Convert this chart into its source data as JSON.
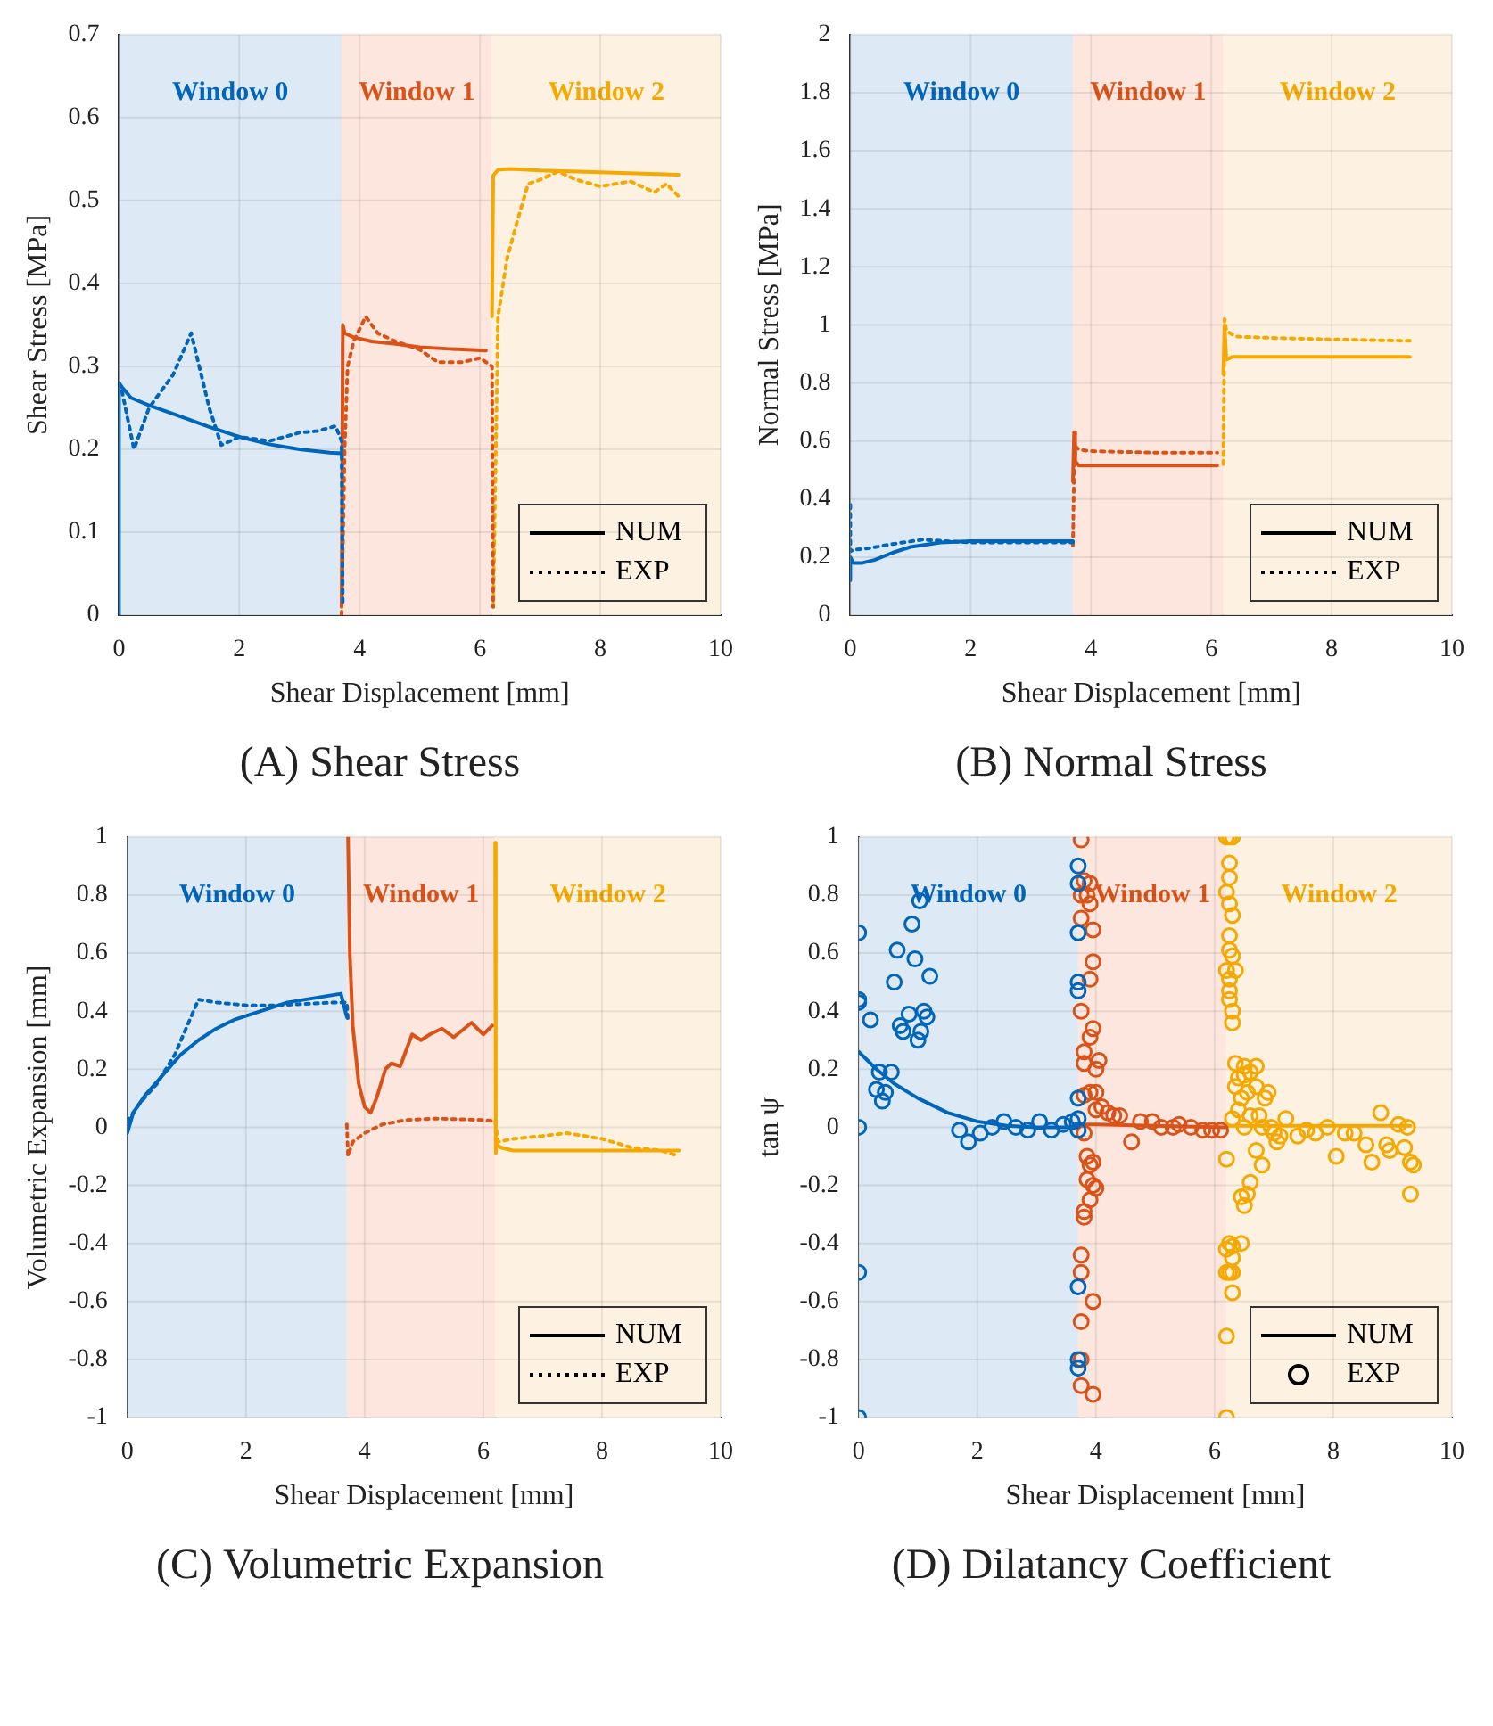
{
  "chart_data": [
    {
      "type": "line",
      "title": "(A) Shear Stress",
      "xlabel": "Shear Displacement [mm]",
      "ylabel": "Shear Stress [MPa]",
      "xlim": [
        0,
        10
      ],
      "xticks": [
        0,
        2,
        4,
        6,
        8,
        10
      ],
      "ylim": [
        0,
        0.7
      ],
      "yticks": [
        0,
        0.1,
        0.2,
        0.3,
        0.4,
        0.5,
        0.6,
        0.7
      ],
      "grid": true,
      "legend": "bottom right",
      "bands": [
        {
          "axis": "x",
          "from": 0,
          "to": 3.7,
          "label": "Window 0",
          "color": "#dde9f4"
        },
        {
          "axis": "x",
          "from": 3.7,
          "to": 6.2,
          "label": "Window 1",
          "color": "#fde6de"
        },
        {
          "axis": "x",
          "from": 6.2,
          "to": 10,
          "label": "Window 2",
          "color": "#fdf2e2"
        }
      ],
      "series": [
        {
          "name": "NUM",
          "color": "#0066bb",
          "line_style": "solid",
          "x": [
            0,
            0,
            0.05,
            0.2,
            0.5,
            1,
            1.5,
            2,
            2.5,
            3,
            3.5,
            3.7
          ],
          "values": [
            0,
            0.28,
            0.275,
            0.262,
            0.253,
            0.24,
            0.227,
            0.215,
            0.206,
            0.2,
            0.196,
            0.195
          ]
        },
        {
          "name": "EXP",
          "color": "#0066bb",
          "line_style": "dotted",
          "x": [
            0,
            0.05,
            0.25,
            0.5,
            0.7,
            0.9,
            1.2,
            1.5,
            1.7,
            2,
            2.5,
            3,
            3.3,
            3.6,
            3.7,
            3.72
          ],
          "values": [
            0.28,
            0.27,
            0.2,
            0.25,
            0.27,
            0.29,
            0.34,
            0.25,
            0.205,
            0.215,
            0.21,
            0.22,
            0.222,
            0.228,
            0.21,
            0.01
          ]
        },
        {
          "color": "#d95319",
          "line_style": "solid",
          "x": [
            3.7,
            3.72,
            3.75,
            3.9,
            4.2,
            4.6,
            5,
            5.5,
            6.1
          ],
          "values": [
            0.01,
            0.35,
            0.34,
            0.335,
            0.33,
            0.327,
            0.323,
            0.321,
            0.319
          ]
        },
        {
          "color": "#d95319",
          "line_style": "dotted",
          "x": [
            3.7,
            3.75,
            3.8,
            3.9,
            4.1,
            4.3,
            4.6,
            5,
            5.3,
            5.7,
            6,
            6.1,
            6.2,
            6.22
          ],
          "values": [
            0,
            0.2,
            0.3,
            0.33,
            0.36,
            0.34,
            0.33,
            0.32,
            0.305,
            0.305,
            0.31,
            0.305,
            0.3,
            0.01
          ]
        },
        {
          "color": "#f5a800",
          "line_style": "solid",
          "x": [
            6.2,
            6.22,
            6.3,
            6.5,
            7,
            8,
            9.3
          ],
          "values": [
            0.36,
            0.53,
            0.537,
            0.538,
            0.536,
            0.534,
            0.531
          ]
        },
        {
          "color": "#f5a800",
          "line_style": "dotted",
          "x": [
            6.22,
            6.3,
            6.45,
            6.6,
            6.8,
            7,
            7.3,
            7.6,
            8,
            8.5,
            8.9,
            9.1,
            9.3
          ],
          "values": [
            0.01,
            0.36,
            0.43,
            0.47,
            0.52,
            0.525,
            0.535,
            0.525,
            0.517,
            0.523,
            0.51,
            0.52,
            0.505
          ]
        }
      ]
    },
    {
      "type": "line",
      "title": "(B) Normal Stress",
      "xlabel": "Shear Displacement [mm]",
      "ylabel": "Normal Stress [MPa]",
      "xlim": [
        0,
        10
      ],
      "xticks": [
        0,
        2,
        4,
        6,
        8,
        10
      ],
      "ylim": [
        0,
        2
      ],
      "yticks": [
        0,
        0.2,
        0.4,
        0.6,
        0.8,
        1,
        1.2,
        1.4,
        1.6,
        1.8,
        2
      ],
      "grid": true,
      "legend": "bottom right",
      "bands": [
        {
          "axis": "x",
          "from": 0,
          "to": 3.7,
          "label": "Window 0",
          "color": "#dde9f4"
        },
        {
          "axis": "x",
          "from": 3.7,
          "to": 6.2,
          "label": "Window 1",
          "color": "#fde6de"
        },
        {
          "axis": "x",
          "from": 6.2,
          "to": 10,
          "label": "Window 2",
          "color": "#fdf2e2"
        }
      ],
      "series": [
        {
          "name": "NUM",
          "color": "#0066bb",
          "line_style": "solid",
          "x": [
            0,
            0,
            0.05,
            0.2,
            0.4,
            0.7,
            1,
            1.5,
            2,
            3,
            3.7
          ],
          "values": [
            0.12,
            0.2,
            0.18,
            0.18,
            0.19,
            0.215,
            0.235,
            0.25,
            0.255,
            0.255,
            0.255
          ]
        },
        {
          "name": "EXP",
          "color": "#0066bb",
          "line_style": "dotted",
          "x": [
            0,
            0,
            0.05,
            0.3,
            0.7,
            1.2,
            1.6,
            2,
            3,
            3.7
          ],
          "values": [
            0.38,
            0.22,
            0.225,
            0.23,
            0.245,
            0.26,
            0.255,
            0.25,
            0.25,
            0.25
          ]
        },
        {
          "color": "#d95319",
          "line_style": "solid",
          "x": [
            3.7,
            3.72,
            3.74,
            3.8,
            4,
            5,
            6.1
          ],
          "values": [
            0.46,
            0.63,
            0.53,
            0.515,
            0.515,
            0.515,
            0.515
          ]
        },
        {
          "color": "#d95319",
          "line_style": "dotted",
          "x": [
            3.7,
            3.72,
            3.75,
            3.8,
            4,
            5,
            6.1
          ],
          "values": [
            0.24,
            0.5,
            0.58,
            0.57,
            0.565,
            0.56,
            0.56
          ]
        },
        {
          "color": "#f5a800",
          "line_style": "solid",
          "x": [
            6.2,
            6.22,
            6.25,
            6.35,
            7,
            8,
            9.3
          ],
          "values": [
            0.83,
            1,
            0.88,
            0.89,
            0.89,
            0.89,
            0.89
          ]
        },
        {
          "color": "#f5a800",
          "line_style": "dotted",
          "x": [
            6.2,
            6.22,
            6.25,
            6.4,
            7,
            8,
            9.3
          ],
          "values": [
            0.52,
            1.02,
            0.98,
            0.96,
            0.955,
            0.95,
            0.945
          ]
        }
      ]
    },
    {
      "type": "line",
      "title": "(C) Volumetric Expansion",
      "xlabel": "Shear Displacement [mm]",
      "ylabel": "Volumetric Expansion [mm]",
      "xlim": [
        0,
        10
      ],
      "xticks": [
        0,
        2,
        4,
        6,
        8,
        10
      ],
      "ylim": [
        -1,
        1
      ],
      "yticks": [
        -1,
        -0.8,
        -0.6,
        -0.4,
        -0.2,
        0,
        0.2,
        0.4,
        0.6,
        0.8,
        1
      ],
      "grid": true,
      "legend": "bottom right",
      "bands": [
        {
          "axis": "x",
          "from": 0,
          "to": 3.7,
          "label": "Window 0",
          "color": "#dde9f4"
        },
        {
          "axis": "x",
          "from": 3.7,
          "to": 6.2,
          "label": "Window 1",
          "color": "#fde6de"
        },
        {
          "axis": "x",
          "from": 6.2,
          "to": 10,
          "label": "Window 2",
          "color": "#fdf2e2"
        }
      ],
      "series": [
        {
          "name": "NUM",
          "color": "#0066bb",
          "line_style": "solid",
          "x": [
            0,
            0.1,
            0.3,
            0.6,
            0.9,
            1.2,
            1.5,
            1.8,
            2.1,
            2.4,
            2.7,
            3,
            3.3,
            3.6,
            3.7
          ],
          "values": [
            -0.02,
            0.05,
            0.11,
            0.18,
            0.25,
            0.3,
            0.34,
            0.37,
            0.39,
            0.41,
            0.43,
            0.44,
            0.45,
            0.46,
            0.38
          ]
        },
        {
          "name": "EXP",
          "color": "#0066bb",
          "line_style": "dotted",
          "x": [
            0,
            0.2,
            0.5,
            0.8,
            1.2,
            1.5,
            2,
            2.5,
            3,
            3.5,
            3.7,
            3.72
          ],
          "values": [
            0.02,
            0.08,
            0.15,
            0.25,
            0.44,
            0.43,
            0.42,
            0.42,
            0.425,
            0.43,
            0.43,
            0.36
          ]
        },
        {
          "color": "#d95319",
          "line_style": "solid",
          "x": [
            3.72,
            3.75,
            3.8,
            3.9,
            4,
            4.1,
            4.2,
            4.35,
            4.45,
            4.6,
            4.8,
            4.95,
            5.1,
            5.3,
            5.5,
            5.8,
            6,
            6.15
          ],
          "values": [
            1,
            0.6,
            0.35,
            0.15,
            0.07,
            0.05,
            0.1,
            0.2,
            0.22,
            0.21,
            0.32,
            0.3,
            0.32,
            0.34,
            0.31,
            0.36,
            0.32,
            0.35
          ]
        },
        {
          "color": "#d95319",
          "line_style": "dotted",
          "x": [
            3.7,
            3.72,
            3.75,
            3.8,
            4,
            4.3,
            4.7,
            5.2,
            6,
            6.2
          ],
          "values": [
            0.01,
            -0.1,
            -0.08,
            -0.05,
            -0.02,
            0.01,
            0.025,
            0.03,
            0.025,
            0.02
          ]
        },
        {
          "color": "#f5a800",
          "line_style": "solid",
          "x": [
            6.2,
            6.21,
            6.22,
            6.3,
            6.5,
            7,
            8,
            9.3
          ],
          "values": [
            0.98,
            -0.09,
            -0.06,
            -0.07,
            -0.08,
            -0.08,
            -0.08,
            -0.08
          ]
        },
        {
          "color": "#f5a800",
          "line_style": "dotted",
          "x": [
            6.2,
            6.25,
            6.5,
            7,
            7.4,
            8,
            8.5,
            9,
            9.3
          ],
          "values": [
            0.02,
            -0.05,
            -0.04,
            -0.03,
            -0.02,
            -0.04,
            -0.07,
            -0.08,
            -0.1
          ]
        }
      ]
    },
    {
      "type": "line",
      "title": "(D) Dilatancy Coefficient",
      "xlabel": "Shear Displacement [mm]",
      "ylabel": "tan ψ",
      "xlim": [
        0,
        10
      ],
      "xticks": [
        0,
        2,
        4,
        6,
        8,
        10
      ],
      "ylim": [
        -1,
        1
      ],
      "yticks": [
        -1,
        -0.8,
        -0.6,
        -0.4,
        -0.2,
        0,
        0.2,
        0.4,
        0.6,
        0.8,
        1
      ],
      "grid": true,
      "legend": "bottom right",
      "bands": [
        {
          "axis": "x",
          "from": 0,
          "to": 3.7,
          "label": "Window 0",
          "color": "#dde9f4"
        },
        {
          "axis": "x",
          "from": 3.7,
          "to": 6.2,
          "label": "Window 1",
          "color": "#fde6de"
        },
        {
          "axis": "x",
          "from": 6.2,
          "to": 10,
          "label": "Window 2",
          "color": "#fdf2e2"
        }
      ],
      "series": [
        {
          "name": "NUM",
          "color": "#0066bb",
          "line_style": "solid",
          "marker": "none",
          "x": [
            0,
            0.3,
            0.6,
            1,
            1.5,
            2,
            2.5,
            3,
            3.5,
            3.7
          ],
          "values": [
            0.26,
            0.2,
            0.15,
            0.1,
            0.05,
            0.02,
            0.005,
            0,
            0,
            0
          ]
        },
        {
          "name": "EXP",
          "type": "scatter",
          "color": "#0066bb",
          "marker": "circle",
          "x": [
            0,
            0,
            0,
            0,
            0,
            0,
            0.2,
            0.3,
            0.35,
            0.4,
            0.45,
            0.55,
            0.6,
            0.65,
            0.7,
            0.75,
            0.85,
            0.9,
            0.95,
            1,
            1.03,
            1.05,
            1.1,
            1.15,
            1.2,
            1.7,
            1.85,
            2.05,
            2.25,
            2.45,
            2.65,
            2.85,
            3.05,
            3.25,
            3.45,
            3.6,
            3.7,
            3.7,
            3.7,
            3.7,
            3.7,
            3.7,
            3.7,
            3.7,
            3.7,
            3.7,
            3.7
          ],
          "values": [
            0.67,
            0.44,
            0.43,
            0,
            -0.5,
            -1,
            0.37,
            0.13,
            0.19,
            0.09,
            0.12,
            0.19,
            0.5,
            0.61,
            0.35,
            0.33,
            0.39,
            0.7,
            0.58,
            0.3,
            0.78,
            0.33,
            0.4,
            0.38,
            0.52,
            -0.01,
            -0.05,
            -0.02,
            0,
            0.02,
            0,
            -0.01,
            0.02,
            -0.01,
            0.01,
            0.02,
            0.9,
            0.84,
            0.67,
            0.5,
            0.47,
            0.1,
            0.03,
            -0.01,
            -0.55,
            -0.8,
            -0.83
          ]
        },
        {
          "color": "#d95319",
          "line_style": "solid",
          "marker": "none",
          "x": [
            3.7,
            4,
            5,
            6.2
          ],
          "values": [
            0.01,
            0.01,
            0.005,
            0
          ]
        },
        {
          "type": "scatter",
          "color": "#d95319",
          "marker": "circle",
          "x": [
            3.75,
            3.75,
            3.75,
            3.8,
            3.85,
            3.9,
            3.9,
            3.95,
            3.95,
            3.9,
            3.75,
            3.8,
            3.8,
            3.95,
            3.9,
            4,
            4.05,
            3.8,
            3.9,
            4,
            4,
            4.1,
            4.2,
            4.3,
            4.4,
            3.8,
            3.85,
            3.9,
            3.95,
            3.85,
            3.95,
            4,
            3.9,
            3.8,
            3.8,
            3.75,
            3.75,
            3.75,
            3.95,
            3.75,
            3.75,
            3.95,
            4.6,
            4.75,
            4.95,
            5.1,
            5.3,
            5.4,
            5.6,
            5.8,
            5.95,
            6.1
          ],
          "values": [
            0.99,
            0.8,
            0.72,
            0.85,
            0.8,
            0.77,
            0.84,
            0.68,
            0.57,
            0.51,
            0.4,
            0.26,
            0.22,
            0.34,
            0.31,
            0.2,
            0.23,
            0.11,
            0.12,
            0.12,
            0.06,
            0.07,
            0.05,
            0.04,
            0.04,
            -0.02,
            -0.1,
            -0.13,
            -0.12,
            -0.18,
            -0.2,
            -0.21,
            -0.25,
            -0.29,
            -0.31,
            -0.44,
            -0.5,
            -0.67,
            -0.6,
            -0.8,
            -0.89,
            -0.92,
            -0.05,
            0.02,
            0.02,
            0,
            0,
            0.01,
            0,
            -0.01,
            -0.01,
            -0.01
          ]
        },
        {
          "color": "#f5a800",
          "line_style": "solid",
          "marker": "none",
          "x": [
            6.2,
            7,
            8,
            9.3
          ],
          "values": [
            0.005,
            0.005,
            0.005,
            0.005
          ]
        },
        {
          "type": "scatter",
          "color": "#f5a800",
          "marker": "circle",
          "x": [
            6.2,
            6.25,
            6.3,
            6.25,
            6.25,
            6.2,
            6.25,
            6.3,
            6.25,
            6.25,
            6.3,
            6.2,
            6.35,
            6.25,
            6.25,
            6.25,
            6.3,
            6.3,
            6.35,
            6.5,
            6.7,
            6.4,
            6.5,
            6.6,
            6.35,
            6.55,
            6.45,
            6.7,
            6.9,
            6.85,
            6.4,
            6.6,
            6.75,
            6.3,
            6.5,
            6.8,
            7,
            7.05,
            7.1,
            6.95,
            7.2,
            7.4,
            7.55,
            7.7,
            7.9,
            8.05,
            8.2,
            8.35,
            8.55,
            8.65,
            8.8,
            8.9,
            8.95,
            9.1,
            9.2,
            9.25,
            9.3,
            9.35,
            9.3,
            6.7,
            6.8,
            6.6,
            6.45,
            6.55,
            6.5,
            6.2,
            6.2,
            6.25,
            6.3,
            6.3,
            6.25,
            6.3,
            6.2,
            6.3,
            6.45,
            6.2,
            6.2
          ],
          "values": [
            1,
            1,
            1,
            0.91,
            0.86,
            0.81,
            0.77,
            0.73,
            0.66,
            0.61,
            0.59,
            0.54,
            0.54,
            0.51,
            0.47,
            0.44,
            0.4,
            0.36,
            0.22,
            0.21,
            0.21,
            0.17,
            0.18,
            0.19,
            0.14,
            0.12,
            0.1,
            0.14,
            0.12,
            0.1,
            0.06,
            0.04,
            0.04,
            0.03,
            0,
            0,
            -0.02,
            -0.05,
            -0.03,
            0,
            0.03,
            -0.03,
            -0.01,
            -0.02,
            0,
            -0.1,
            -0.02,
            -0.02,
            -0.06,
            -0.12,
            0.05,
            -0.06,
            -0.08,
            0.01,
            -0.07,
            0,
            -0.12,
            -0.13,
            -0.23,
            -0.08,
            -0.13,
            -0.19,
            -0.24,
            -0.23,
            -0.27,
            -0.11,
            -0.42,
            -0.4,
            -0.41,
            -0.45,
            -0.5,
            -0.5,
            -0.5,
            -0.57,
            -0.4,
            -0.72,
            -1
          ]
        }
      ]
    }
  ]
}
